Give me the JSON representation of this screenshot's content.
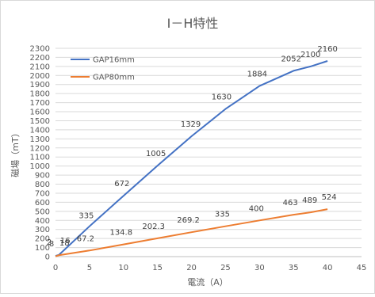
{
  "chart_data": {
    "type": "line",
    "title": "I－H特性",
    "xlabel": "電流（A）",
    "ylabel": "磁場（mT）",
    "xlim": [
      0,
      45
    ],
    "ylim": [
      0,
      2300
    ],
    "xticks": [
      0,
      5,
      10,
      15,
      20,
      25,
      30,
      35,
      40,
      45
    ],
    "yticks": [
      0,
      100,
      200,
      300,
      400,
      500,
      600,
      700,
      800,
      900,
      1000,
      1100,
      1200,
      1300,
      1400,
      1500,
      1600,
      1700,
      1800,
      1900,
      2000,
      2100,
      2200,
      2300
    ],
    "grid": "horizontal",
    "legend_position": "top-left",
    "series": [
      {
        "name": "GAP16mm",
        "color": "#4472C4",
        "x": [
          0,
          0.5,
          5,
          10,
          15,
          20,
          25,
          30,
          35,
          37.5,
          40
        ],
        "y": [
          8,
          18,
          335,
          672,
          1005,
          1329,
          1630,
          1884,
          2052,
          2100,
          2160
        ],
        "labels": [
          "8",
          "18",
          "335",
          "672",
          "1005",
          "1329",
          "1630",
          "1884",
          "2052",
          "2100",
          "2160"
        ]
      },
      {
        "name": "GAP80mm",
        "color": "#ED7D31",
        "x": [
          0,
          0.5,
          5,
          10,
          15,
          20,
          25,
          30,
          35,
          37.5,
          40
        ],
        "y": [
          2,
          16,
          67.2,
          134.8,
          202.3,
          269.2,
          335,
          400,
          463,
          489,
          524
        ],
        "labels": [
          "2",
          "16",
          "67.2",
          "134.8",
          "202.3",
          "269.2",
          "335",
          "400",
          "463",
          "489",
          "524"
        ]
      }
    ]
  }
}
